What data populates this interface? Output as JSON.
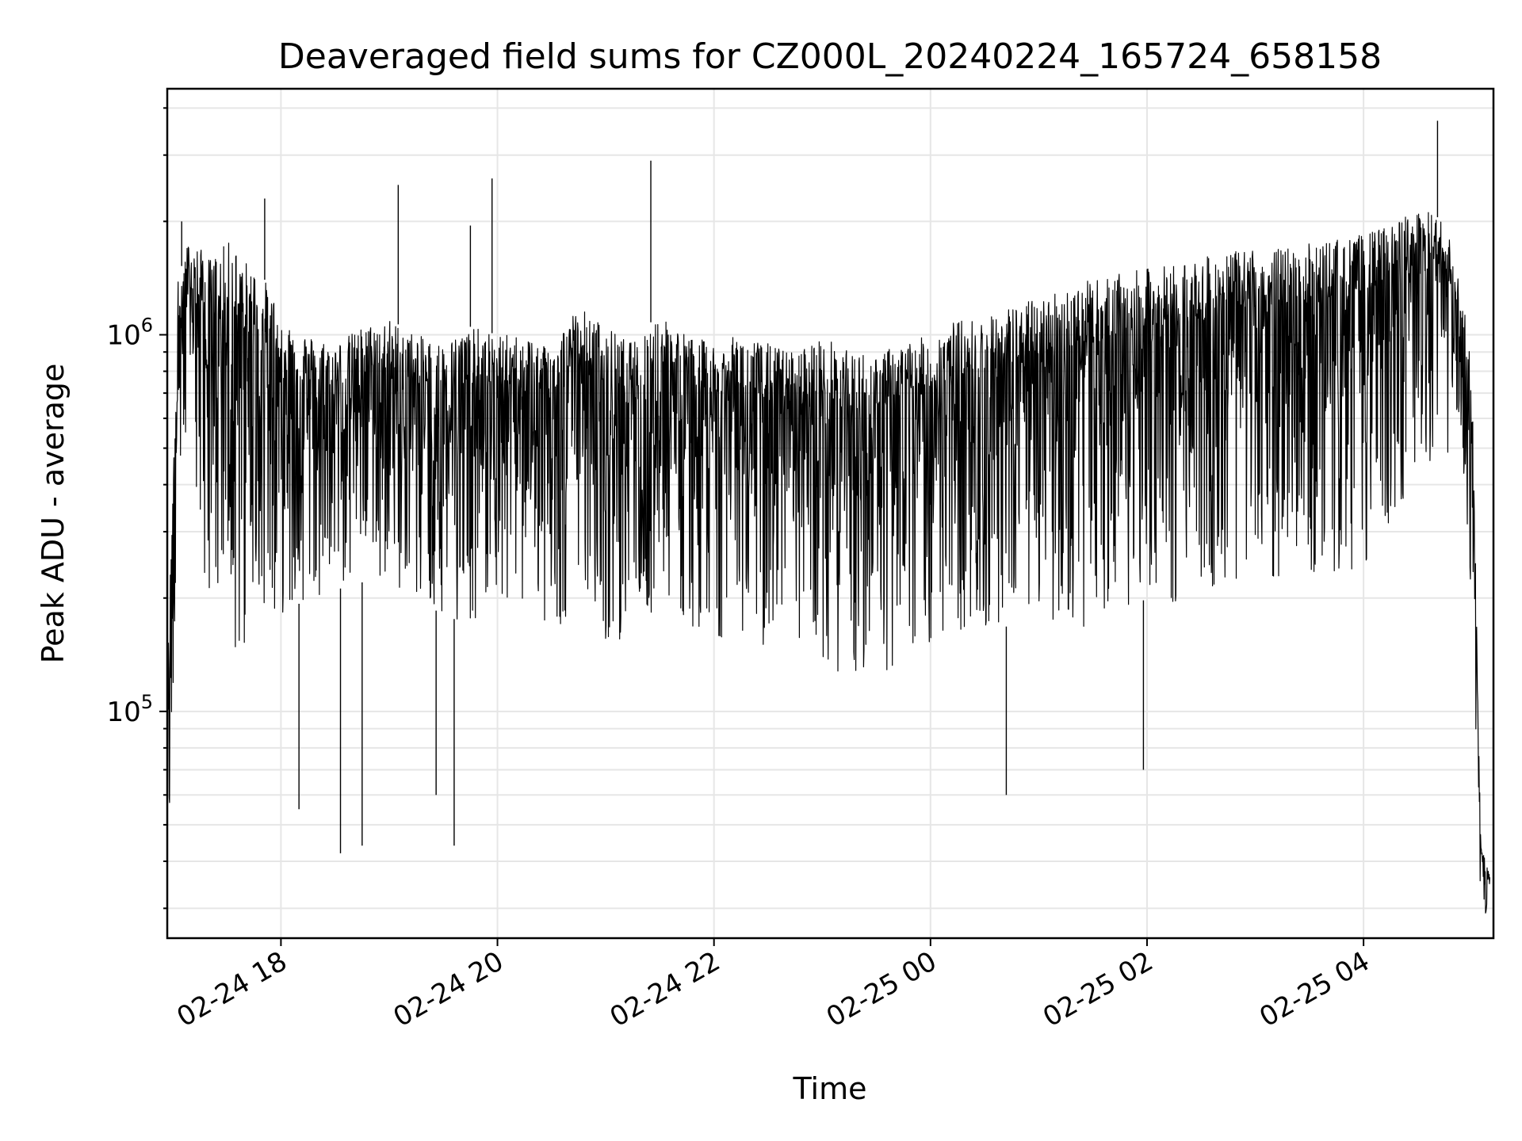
{
  "chart_data": {
    "type": "line",
    "title": "Deaveraged field sums for CZ000L_20240224_165724_658158",
    "xlabel": "Time",
    "ylabel": "Peak ADU - average",
    "xscale": "time",
    "yscale": "log",
    "xlim": [
      "2024-02-24 16:57",
      "2024-02-25 05:12"
    ],
    "ylim": [
      25000,
      4500000
    ],
    "x_ticks": [
      {
        "value": "2024-02-24 18:00",
        "label": "02-24 18"
      },
      {
        "value": "2024-02-24 20:00",
        "label": "02-24 20"
      },
      {
        "value": "2024-02-24 22:00",
        "label": "02-24 22"
      },
      {
        "value": "2024-02-25 00:00",
        "label": "02-25 00"
      },
      {
        "value": "2024-02-25 02:00",
        "label": "02-25 02"
      },
      {
        "value": "2024-02-25 04:00",
        "label": "02-25 04"
      }
    ],
    "y_ticks": [
      {
        "value": 100000,
        "base": "10",
        "exp": "5"
      },
      {
        "value": 1000000,
        "base": "10",
        "exp": "6"
      }
    ],
    "grid": true,
    "line_color": "#000000",
    "grid_color": "#e6e6e6",
    "series": [
      {
        "x": [
          "2024-02-24 16:57",
          "2024-02-24 17:03",
          "2024-02-24 17:09",
          "2024-02-24 17:15",
          "2024-02-24 17:21",
          "2024-02-24 17:27",
          "2024-02-24 17:33",
          "2024-02-24 17:39",
          "2024-02-24 17:45",
          "2024-02-24 17:51",
          "2024-02-24 18:00",
          "2024-02-24 18:15",
          "2024-02-24 18:30",
          "2024-02-24 18:45",
          "2024-02-24 19:00",
          "2024-02-24 19:15",
          "2024-02-24 19:30",
          "2024-02-24 19:45",
          "2024-02-24 20:00",
          "2024-02-24 20:15",
          "2024-02-24 20:30",
          "2024-02-24 20:45",
          "2024-02-24 21:00",
          "2024-02-24 21:15",
          "2024-02-24 21:30",
          "2024-02-24 21:45",
          "2024-02-24 22:00",
          "2024-02-24 22:15",
          "2024-02-24 22:30",
          "2024-02-24 22:45",
          "2024-02-24 23:00",
          "2024-02-24 23:15",
          "2024-02-24 23:30",
          "2024-02-24 23:45",
          "2024-02-25 00:00",
          "2024-02-25 00:15",
          "2024-02-25 00:30",
          "2024-02-25 00:45",
          "2024-02-25 01:00",
          "2024-02-25 01:15",
          "2024-02-25 01:30",
          "2024-02-25 01:45",
          "2024-02-25 02:00",
          "2024-02-25 02:15",
          "2024-02-25 02:30",
          "2024-02-25 02:45",
          "2024-02-25 03:00",
          "2024-02-25 03:15",
          "2024-02-25 03:30",
          "2024-02-25 03:45",
          "2024-02-25 04:00",
          "2024-02-25 04:15",
          "2024-02-25 04:30",
          "2024-02-25 04:45",
          "2024-02-25 04:55",
          "2024-02-25 05:00",
          "2024-02-25 05:05",
          "2024-02-25 05:10"
        ],
        "upper": [
          120000,
          1400000,
          1800000,
          1700000,
          1600000,
          1700000,
          1800000,
          1600000,
          1500000,
          1400000,
          1150000,
          1000000,
          950000,
          1050000,
          1100000,
          1000000,
          950000,
          1050000,
          1000000,
          1000000,
          950000,
          1200000,
          1050000,
          950000,
          1150000,
          1000000,
          950000,
          1000000,
          950000,
          900000,
          1000000,
          900000,
          900000,
          950000,
          1000000,
          1100000,
          1100000,
          1200000,
          1250000,
          1350000,
          1400000,
          1450000,
          1500000,
          1550000,
          1600000,
          1650000,
          1700000,
          1700000,
          1750000,
          1800000,
          1850000,
          1950000,
          2200000,
          2000000,
          1300000,
          800000,
          45000,
          38000
        ],
        "lower": [
          30000,
          300000,
          400000,
          250000,
          200000,
          150000,
          140000,
          130000,
          200000,
          190000,
          180000,
          200000,
          210000,
          220000,
          220000,
          200000,
          180000,
          170000,
          200000,
          190000,
          150000,
          200000,
          150000,
          160000,
          180000,
          170000,
          160000,
          150000,
          140000,
          130000,
          120000,
          120000,
          120000,
          130000,
          150000,
          160000,
          160000,
          170000,
          180000,
          170000,
          160000,
          180000,
          200000,
          190000,
          200000,
          210000,
          220000,
          210000,
          220000,
          230000,
          240000,
          300000,
          450000,
          400000,
          400000,
          200000,
          30000,
          28000
        ],
        "spikes": [
          {
            "x": "2024-02-24 17:05",
            "y": 2000000
          },
          {
            "x": "2024-02-24 17:51",
            "y": 2300000
          },
          {
            "x": "2024-02-24 19:05",
            "y": 2500000
          },
          {
            "x": "2024-02-24 19:45",
            "y": 1950000
          },
          {
            "x": "2024-02-24 19:57",
            "y": 2600000
          },
          {
            "x": "2024-02-24 21:25",
            "y": 2900000
          },
          {
            "x": "2024-02-25 04:41",
            "y": 3700000
          },
          {
            "x": "2024-02-24 18:10",
            "y": 55000
          },
          {
            "x": "2024-02-24 18:33",
            "y": 42000
          },
          {
            "x": "2024-02-24 18:45",
            "y": 44000
          },
          {
            "x": "2024-02-24 19:26",
            "y": 60000
          },
          {
            "x": "2024-02-24 19:36",
            "y": 44000
          },
          {
            "x": "2024-02-25 00:42",
            "y": 60000
          },
          {
            "x": "2024-02-25 01:58",
            "y": 70000
          }
        ]
      }
    ]
  }
}
